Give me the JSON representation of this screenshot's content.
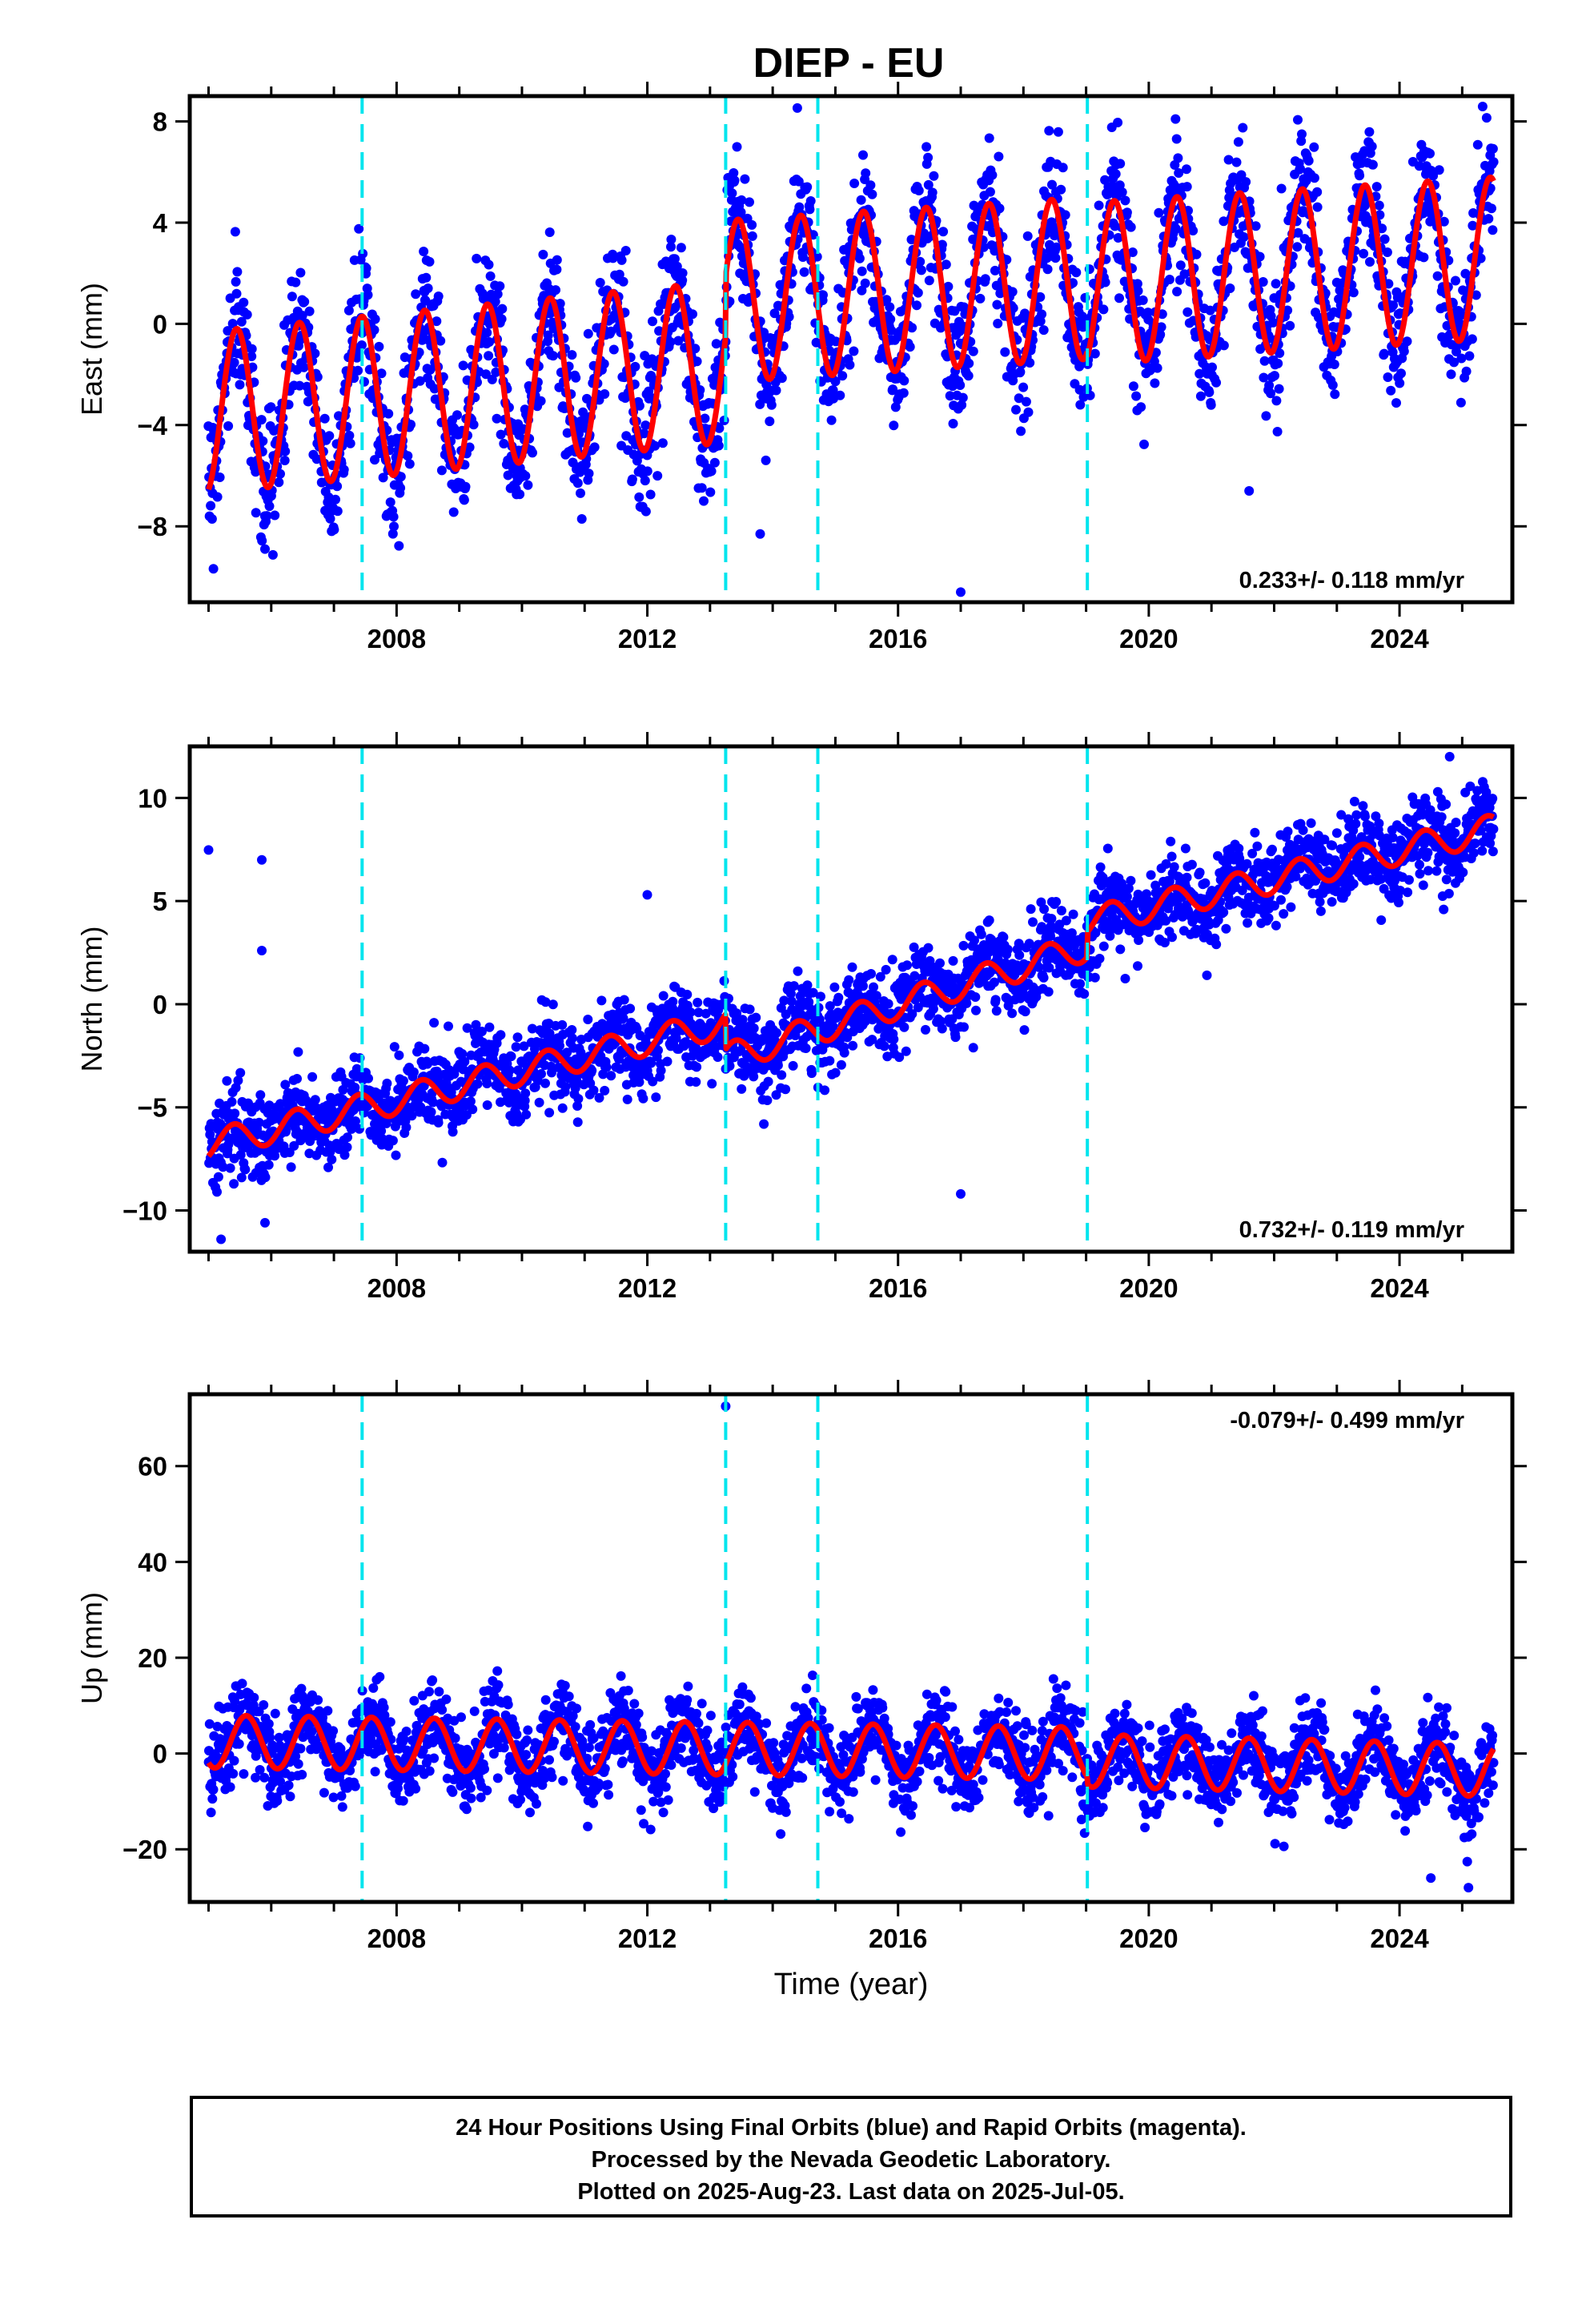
{
  "title": "DIEP - EU",
  "colors": {
    "final_orbits": "#0000ff",
    "fit": "#ff0000",
    "breaks": "#00e5ee",
    "frame": "#000000"
  },
  "chart_data": [
    {
      "type": "scatter",
      "panel": "east",
      "ylabel": "East (mm)",
      "xlabel": "",
      "xlim": [
        2004.7,
        2025.8
      ],
      "ylim": [
        -11,
        9
      ],
      "x_ticks": [
        2008,
        2012,
        2016,
        2020,
        2024
      ],
      "y_ticks": [
        -8,
        -4,
        0,
        4,
        8
      ],
      "y_tick_labels": [
        "−8",
        "−4",
        "0",
        "4",
        "8"
      ],
      "rate_label": "0.233+/- 0.118 mm/yr",
      "rate_position": "bottom-right",
      "break_lines": [
        2007.45,
        2013.25,
        2014.72,
        2019.02
      ],
      "start": 2005.0,
      "end": 2025.5,
      "fit_model": {
        "trend_segments": [
          {
            "from": 2005.0,
            "to": 2013.25,
            "start": -3.5,
            "end": -1.5
          },
          {
            "from": 2013.25,
            "to": 2019.02,
            "start": 0.9,
            "end": 1.8
          },
          {
            "from": 2019.02,
            "to": 2025.5,
            "start": 1.6,
            "end": 2.6
          }
        ],
        "annual_amplitude": 3.2,
        "annual_peak_phase": 0.45,
        "scatter_sd": 1.3
      },
      "outliers": [
        {
          "x": 2005.9,
          "y": -8.9
        },
        {
          "x": 2013.8,
          "y": -8.3
        },
        {
          "x": 2017.0,
          "y": -10.6
        },
        {
          "x": 2021.6,
          "y": -6.6
        },
        {
          "x": 2012.9,
          "y": -7.0
        }
      ]
    },
    {
      "type": "scatter",
      "panel": "north",
      "ylabel": "North (mm)",
      "xlabel": "",
      "xlim": [
        2004.7,
        2025.8
      ],
      "ylim": [
        -12,
        12.5
      ],
      "x_ticks": [
        2008,
        2012,
        2016,
        2020,
        2024
      ],
      "y_ticks": [
        -10,
        -5,
        0,
        5,
        10
      ],
      "y_tick_labels": [
        "−10",
        "−5",
        "0",
        "5",
        "10"
      ],
      "rate_label": "0.732+/- 0.119 mm/yr",
      "rate_position": "bottom-right",
      "break_lines": [
        2007.45,
        2013.25,
        2014.72,
        2019.02
      ],
      "start": 2005.0,
      "end": 2025.5,
      "fit_model": {
        "trend_segments": [
          {
            "from": 2005.0,
            "to": 2013.25,
            "start": -6.8,
            "end": -0.9
          },
          {
            "from": 2013.25,
            "to": 2019.02,
            "start": -2.6,
            "end": 2.8
          },
          {
            "from": 2019.02,
            "to": 2025.5,
            "start": 4.0,
            "end": 8.5
          }
        ],
        "annual_amplitude": 0.7,
        "annual_peak_phase": 0.4,
        "scatter_sd": 1.0
      },
      "outliers": [
        {
          "x": 2005.85,
          "y": 7.0
        },
        {
          "x": 2005.85,
          "y": 2.6
        },
        {
          "x": 2005.2,
          "y": -11.4
        },
        {
          "x": 2005.9,
          "y": -10.6
        },
        {
          "x": 2017.0,
          "y": -9.2
        },
        {
          "x": 2012.0,
          "y": 5.3
        },
        {
          "x": 2024.8,
          "y": 12.0
        }
      ]
    },
    {
      "type": "scatter",
      "panel": "up",
      "ylabel": "Up (mm)",
      "xlabel": "Time (year)",
      "xlim": [
        2004.7,
        2025.8
      ],
      "ylim": [
        -31,
        75
      ],
      "x_ticks": [
        2008,
        2012,
        2016,
        2020,
        2024
      ],
      "y_ticks": [
        -20,
        0,
        20,
        40,
        60
      ],
      "y_tick_labels": [
        "−20",
        "0",
        "20",
        "40",
        "60"
      ],
      "rate_label": "-0.079+/- 0.499 mm/yr",
      "rate_position": "top-right",
      "break_lines": [
        2007.45,
        2013.25,
        2014.72,
        2019.02
      ],
      "start": 2005.0,
      "end": 2025.5,
      "fit_model": {
        "trend_segments": [
          {
            "from": 2005.0,
            "to": 2019.02,
            "start": 2.5,
            "end": 0.0
          },
          {
            "from": 2019.02,
            "to": 2025.5,
            "start": -1.5,
            "end": -3.5
          }
        ],
        "annual_amplitude": 5.5,
        "annual_peak_phase": 0.6,
        "scatter_sd": 4.2
      },
      "outliers": [
        {
          "x": 2013.25,
          "y": 72.5
        },
        {
          "x": 2024.5,
          "y": -26
        },
        {
          "x": 2025.1,
          "y": -28
        }
      ]
    }
  ],
  "footer": {
    "line1": "24 Hour Positions Using Final Orbits (blue) and Rapid Orbits (magenta).",
    "line2": "Processed by the Nevada Geodetic Laboratory.",
    "line3": "Plotted on 2025-Aug-23. Last data on 2025-Jul-05."
  }
}
